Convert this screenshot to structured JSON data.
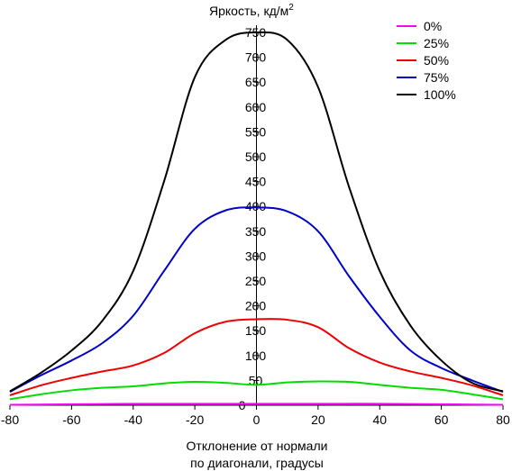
{
  "chart_data": {
    "type": "line",
    "title": "",
    "ylabel": "Яркость, кд/м",
    "ylabel_superscript": "2",
    "xlabel_line1": "Отклонение от нормали",
    "xlabel_line2": "по диагонали, градусы",
    "xlim": [
      -80,
      80
    ],
    "ylim": [
      0,
      750
    ],
    "xticks": [
      -80,
      -60,
      -40,
      -20,
      0,
      20,
      40,
      60,
      80
    ],
    "yticks": [
      50,
      100,
      150,
      200,
      250,
      300,
      350,
      400,
      450,
      500,
      550,
      600,
      650,
      700,
      750
    ],
    "y_zero_label": "0",
    "grid": false,
    "legend_position": "top-right",
    "series": [
      {
        "name": "0%",
        "color": "#ff00ff",
        "x": [
          -80,
          -60,
          -40,
          -20,
          0,
          20,
          40,
          60,
          80
        ],
        "y": [
          1,
          2,
          3,
          3,
          3,
          3,
          3,
          2,
          1
        ]
      },
      {
        "name": "25%",
        "color": "#00dd00",
        "x": [
          -80,
          -70,
          -60,
          -50,
          -40,
          -30,
          -20,
          -10,
          0,
          10,
          20,
          30,
          40,
          50,
          60,
          70,
          80
        ],
        "y": [
          12,
          22,
          30,
          35,
          38,
          44,
          47,
          45,
          41,
          46,
          48,
          47,
          41,
          35,
          31,
          22,
          12
        ]
      },
      {
        "name": "50%",
        "color": "#ee0000",
        "x": [
          -80,
          -70,
          -60,
          -50,
          -40,
          -30,
          -20,
          -10,
          0,
          10,
          20,
          30,
          40,
          50,
          60,
          70,
          80
        ],
        "y": [
          20,
          40,
          55,
          68,
          80,
          105,
          145,
          168,
          173,
          172,
          157,
          115,
          86,
          68,
          55,
          40,
          20
        ]
      },
      {
        "name": "75%",
        "color": "#0000cc",
        "x": [
          -80,
          -70,
          -60,
          -50,
          -40,
          -30,
          -20,
          -10,
          0,
          10,
          20,
          30,
          40,
          50,
          60,
          70,
          80
        ],
        "y": [
          27,
          60,
          90,
          125,
          180,
          270,
          355,
          392,
          398,
          390,
          350,
          260,
          178,
          110,
          75,
          50,
          27
        ]
      },
      {
        "name": "100%",
        "color": "#000000",
        "x": [
          -80,
          -70,
          -60,
          -50,
          -40,
          -30,
          -20,
          -10,
          0,
          10,
          20,
          30,
          40,
          50,
          60,
          70,
          80
        ],
        "y": [
          28,
          65,
          110,
          170,
          270,
          450,
          660,
          735,
          750,
          735,
          640,
          440,
          270,
          160,
          90,
          45,
          28
        ]
      }
    ]
  }
}
